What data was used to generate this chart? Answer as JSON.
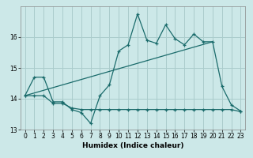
{
  "xlabel": "Humidex (Indice chaleur)",
  "bg_color": "#cce8e8",
  "grid_color": "#aacccc",
  "line_color": "#1a6b6b",
  "x_values": [
    0,
    1,
    2,
    3,
    4,
    5,
    6,
    7,
    8,
    9,
    10,
    11,
    12,
    13,
    14,
    15,
    16,
    17,
    18,
    19,
    20,
    21,
    22,
    23
  ],
  "upper_line": [
    14.1,
    14.7,
    14.7,
    13.9,
    13.9,
    13.65,
    13.55,
    13.2,
    14.1,
    14.45,
    15.55,
    15.75,
    16.75,
    15.9,
    15.8,
    16.4,
    15.95,
    15.75,
    16.1,
    15.85,
    15.85,
    14.4,
    13.8,
    13.6
  ],
  "lower_line": [
    14.1,
    14.1,
    14.1,
    13.85,
    13.85,
    13.7,
    13.65,
    13.65,
    13.65,
    13.65,
    13.65,
    13.65,
    13.65,
    13.65,
    13.65,
    13.65,
    13.65,
    13.65,
    13.65,
    13.65,
    13.65,
    13.65,
    13.65,
    13.58
  ],
  "trend_x": [
    0,
    20
  ],
  "trend_y": [
    14.1,
    15.85
  ],
  "ylim": [
    13.0,
    17.0
  ],
  "xlim": [
    -0.5,
    23.5
  ],
  "yticks": [
    13,
    14,
    15,
    16
  ],
  "xticks": [
    0,
    1,
    2,
    3,
    4,
    5,
    6,
    7,
    8,
    9,
    10,
    11,
    12,
    13,
    14,
    15,
    16,
    17,
    18,
    19,
    20,
    21,
    22,
    23
  ],
  "tick_labelsize": 5.5,
  "xlabel_fontsize": 6.5
}
